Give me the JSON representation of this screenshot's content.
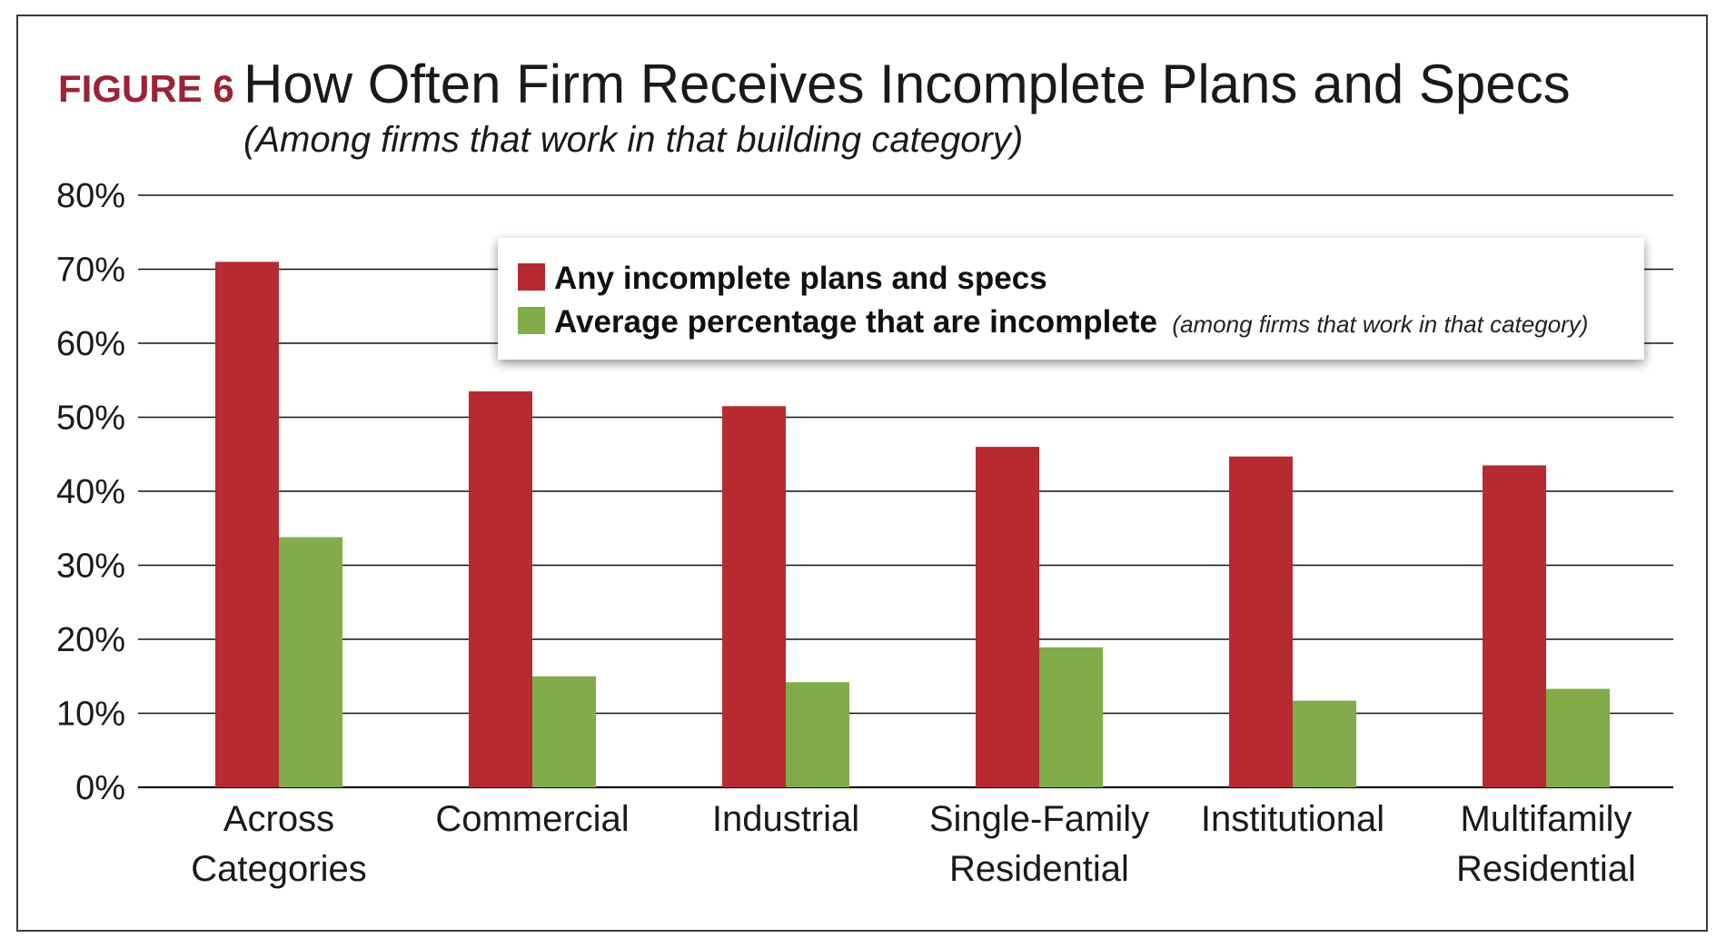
{
  "figure": {
    "label": "FIGURE 6",
    "title": "How Often Firm Receives Incomplete Plans and Specs",
    "subtitle": "(Among firms that work in that building category)"
  },
  "legend": {
    "items": [
      {
        "label": "Any incomplete plans and specs",
        "note": ""
      },
      {
        "label": "Average percentage that are incomplete",
        "note": "(among firms that work in that category)"
      }
    ]
  },
  "chart_data": {
    "type": "bar",
    "title": "How Often Firm Receives Incomplete Plans and Specs",
    "subtitle": "(Among firms that work in that building category)",
    "categories": [
      [
        "Across",
        "Categories"
      ],
      [
        "Commercial"
      ],
      [
        "Industrial"
      ],
      [
        "Single-Family",
        "Residential"
      ],
      [
        "Institutional"
      ],
      [
        "Multifamily",
        "Residential"
      ]
    ],
    "series": [
      {
        "name": "Any incomplete plans and specs",
        "values": [
          71,
          53.5,
          51.5,
          46,
          44.7,
          43.5
        ],
        "color": "#b72a30"
      },
      {
        "name": "Average percentage that are incomplete",
        "values": [
          33.8,
          15,
          14.2,
          18.9,
          11.7,
          13.3
        ],
        "color": "#82ab4a"
      }
    ],
    "ylim": [
      0,
      80
    ],
    "yticks": [
      0,
      10,
      20,
      30,
      40,
      50,
      60,
      70,
      80
    ],
    "ytick_labels": [
      "0%",
      "10%",
      "20%",
      "30%",
      "40%",
      "50%",
      "60%",
      "70%",
      "80%"
    ],
    "grid": true,
    "legend_position": "top-right"
  }
}
